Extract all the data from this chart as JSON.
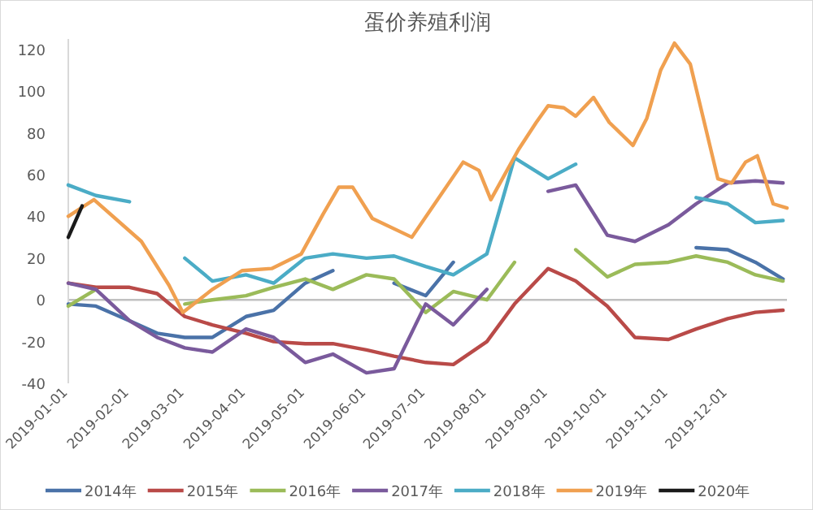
{
  "chart_data": {
    "type": "line",
    "title": "蛋价养殖利润",
    "x": [
      "2019-01-01",
      "2019-01-15",
      "2019-02-01",
      "2019-02-15",
      "2019-03-01",
      "2019-03-15",
      "2019-04-01",
      "2019-04-15",
      "2019-05-01",
      "2019-05-15",
      "2019-06-01",
      "2019-06-15",
      "2019-07-01",
      "2019-07-15",
      "2019-08-01",
      "2019-08-15",
      "2019-09-01",
      "2019-09-15",
      "2019-10-01",
      "2019-10-15",
      "2019-11-01",
      "2019-11-15",
      "2019-12-01",
      "2019-12-15",
      "2019-12-29"
    ],
    "xlim": [
      "2019-01-01",
      "2019-12-31"
    ],
    "xticks": [
      "2019-01-01",
      "2019-02-01",
      "2019-03-01",
      "2019-04-01",
      "2019-05-01",
      "2019-06-01",
      "2019-07-01",
      "2019-08-01",
      "2019-09-01",
      "2019-10-01",
      "2019-11-01",
      "2019-12-01"
    ],
    "ylim": [
      -40,
      125
    ],
    "yticks": [
      -40,
      -20,
      0,
      20,
      40,
      60,
      80,
      100,
      120
    ],
    "ref_lines": [
      {
        "axis": "y",
        "value": 0,
        "color": "#c0c0c0"
      }
    ],
    "legend": "bottom",
    "series": [
      {
        "name": "2014年",
        "color": "#4a72a8",
        "values": [
          -2,
          -3,
          -10,
          -16,
          -18,
          -18,
          -8,
          -5,
          8,
          14,
          null,
          8,
          2,
          18,
          null,
          null,
          null,
          null,
          null,
          null,
          null,
          25,
          24,
          18,
          10
        ]
      },
      {
        "name": "2015年",
        "color": "#b94a48",
        "values": [
          8,
          6,
          6,
          3,
          -8,
          -12,
          -16,
          -20,
          -21,
          -21,
          -24,
          -27,
          -30,
          -31,
          -20,
          -2,
          15,
          9,
          -3,
          -18,
          -19,
          -14,
          -9,
          -6,
          -5
        ]
      },
      {
        "name": "2016年",
        "color": "#9bbb59",
        "values": [
          -3,
          5,
          null,
          null,
          -2,
          0,
          2,
          6,
          10,
          5,
          12,
          10,
          -6,
          4,
          0,
          18,
          null,
          24,
          11,
          17,
          18,
          21,
          18,
          12,
          9
        ]
      },
      {
        "name": "2017年",
        "color": "#7a5a9c",
        "values": [
          8,
          5,
          -10,
          -18,
          -23,
          -25,
          -14,
          -18,
          -30,
          -26,
          -35,
          -33,
          -2,
          -12,
          5,
          null,
          52,
          55,
          31,
          28,
          36,
          46,
          56,
          57,
          56
        ]
      },
      {
        "name": "2018年",
        "color": "#4bacc6",
        "values": [
          55,
          50,
          47,
          null,
          20,
          9,
          12,
          8,
          20,
          22,
          20,
          21,
          16,
          12,
          22,
          68,
          58,
          65,
          null,
          null,
          null,
          49,
          46,
          37,
          38
        ]
      },
      {
        "name": "2019年",
        "color": "#f0a050",
        "x": [
          "2019-01-01",
          "2019-01-14",
          "2019-02-07",
          "2019-02-21",
          "2019-02-28",
          "2019-03-15",
          "2019-03-30",
          "2019-04-14",
          "2019-04-29",
          "2019-05-10",
          "2019-05-18",
          "2019-05-25",
          "2019-06-04",
          "2019-06-24",
          "2019-07-20",
          "2019-07-28",
          "2019-08-03",
          "2019-08-17",
          "2019-08-26",
          "2019-09-01",
          "2019-09-09",
          "2019-09-15",
          "2019-09-24",
          "2019-10-02",
          "2019-10-14",
          "2019-10-21",
          "2019-10-28",
          "2019-11-04",
          "2019-11-12",
          "2019-11-26",
          "2019-12-03",
          "2019-12-10",
          "2019-12-16",
          "2019-12-24",
          "2019-12-31"
        ],
        "values": [
          40,
          48,
          28,
          7,
          -6,
          5,
          14,
          15,
          22,
          41,
          54,
          54,
          39,
          30,
          66,
          62,
          48,
          72,
          85,
          93,
          92,
          88,
          97,
          85,
          74,
          87,
          110,
          123,
          113,
          58,
          56,
          66,
          69,
          46,
          44
        ]
      },
      {
        "name": "2020年",
        "color": "#1a1a1a",
        "x": [
          "2019-01-01",
          "2019-01-08"
        ],
        "values": [
          30,
          45
        ]
      }
    ]
  }
}
